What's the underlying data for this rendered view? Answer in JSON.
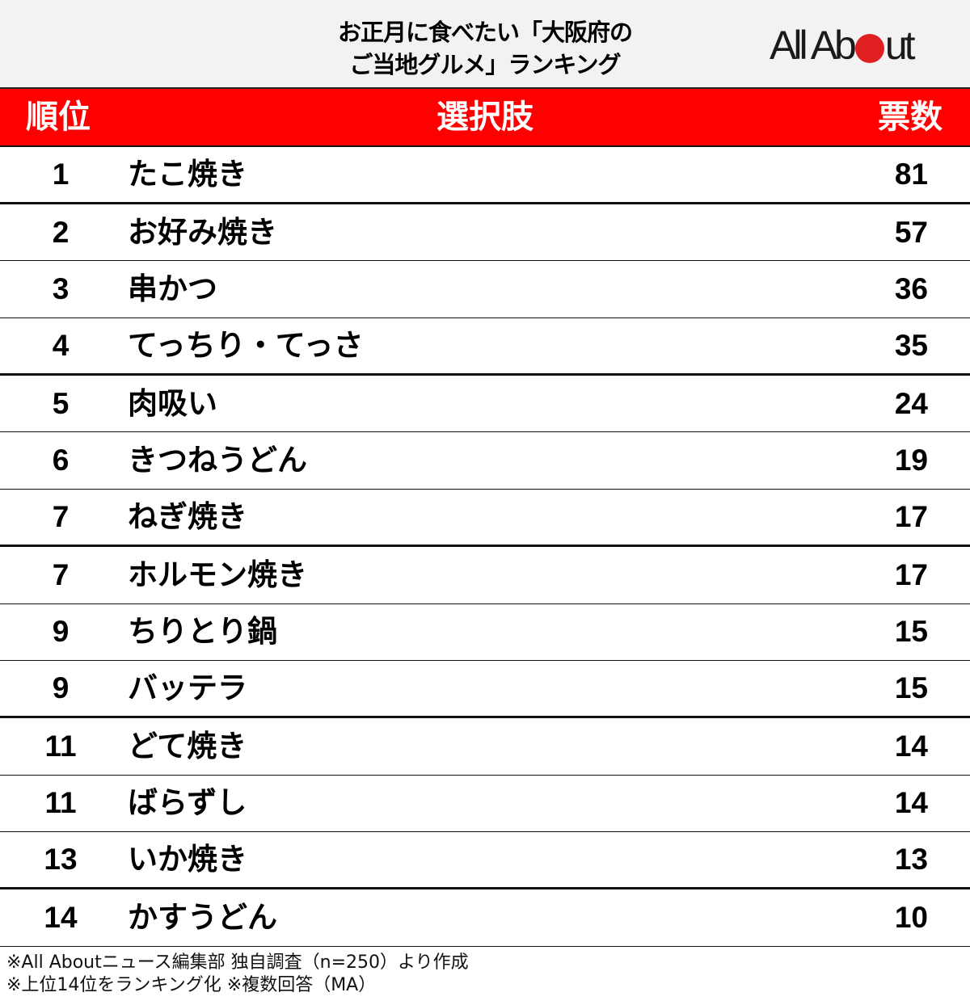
{
  "header": {
    "title_line1": "お正月に食べたい「大阪府の",
    "title_line2": "ご当地グルメ」ランキング",
    "logo_prefix": "All Ab",
    "logo_suffix": "ut",
    "logo_dot_color": "#e02020"
  },
  "table": {
    "header_color": "#ff0000",
    "columns": [
      "順位",
      "選択肢",
      "票数"
    ],
    "rows": [
      {
        "rank": "1",
        "choice": "たこ焼き",
        "votes": "81"
      },
      {
        "rank": "2",
        "choice": "お好み焼き",
        "votes": "57"
      },
      {
        "rank": "3",
        "choice": "串かつ",
        "votes": "36"
      },
      {
        "rank": "4",
        "choice": "てっちり・てっさ",
        "votes": "35"
      },
      {
        "rank": "5",
        "choice": "肉吸い",
        "votes": "24"
      },
      {
        "rank": "6",
        "choice": "きつねうどん",
        "votes": "19"
      },
      {
        "rank": "7",
        "choice": "ねぎ焼き",
        "votes": "17"
      },
      {
        "rank": "7",
        "choice": "ホルモン焼き",
        "votes": "17"
      },
      {
        "rank": "9",
        "choice": "ちりとり鍋",
        "votes": "15"
      },
      {
        "rank": "9",
        "choice": "バッテラ",
        "votes": "15"
      },
      {
        "rank": "11",
        "choice": "どて焼き",
        "votes": "14"
      },
      {
        "rank": "11",
        "choice": "ばらずし",
        "votes": "14"
      },
      {
        "rank": "13",
        "choice": "いか焼き",
        "votes": "13"
      },
      {
        "rank": "14",
        "choice": "かすうどん",
        "votes": "10"
      }
    ]
  },
  "notes": {
    "line1": "※All Aboutニュース編集部 独自調査（n=250）より作成",
    "line2": "※上位14位をランキング化 ※複数回答（MA）"
  },
  "chart_data": {
    "type": "table",
    "title": "お正月に食べたい「大阪府のご当地グルメ」ランキング",
    "columns": [
      "順位",
      "選択肢",
      "票数"
    ],
    "categories": [
      "たこ焼き",
      "お好み焼き",
      "串かつ",
      "てっちり・てっさ",
      "肉吸い",
      "きつねうどん",
      "ねぎ焼き",
      "ホルモン焼き",
      "ちりとり鍋",
      "バッテラ",
      "どて焼き",
      "ばらずし",
      "いか焼き",
      "かすうどん"
    ],
    "ranks": [
      1,
      2,
      3,
      4,
      5,
      6,
      7,
      7,
      9,
      9,
      11,
      11,
      13,
      14
    ],
    "values": [
      81,
      57,
      36,
      35,
      24,
      19,
      17,
      17,
      15,
      15,
      14,
      14,
      13,
      10
    ],
    "notes": [
      "※All Aboutニュース編集部 独自調査（n=250）より作成",
      "※上位14位をランキング化 ※複数回答（MA）"
    ]
  }
}
